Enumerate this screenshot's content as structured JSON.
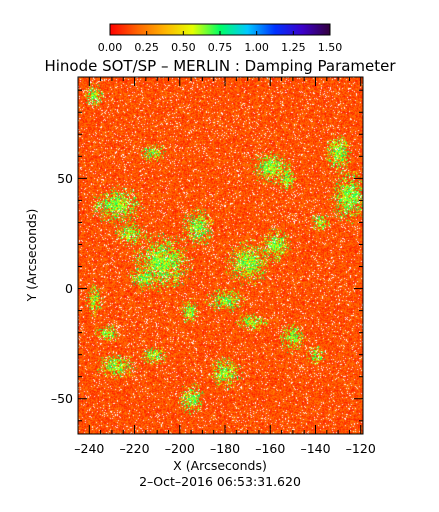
{
  "chart_data": {
    "type": "heatmap",
    "title": "Hinode SOT/SP – MERLIN : Damping Parameter",
    "xlabel": "X (Arcseconds)",
    "ylabel": "Y (Arcseconds)",
    "timestamp": "2–Oct–2016 06:53:31.620",
    "xlim": [
      -245,
      -119
    ],
    "ylim": [
      -66,
      96
    ],
    "x_ticks": [
      -240,
      -220,
      -200,
      -180,
      -160,
      -140,
      -120
    ],
    "y_ticks": [
      -50,
      0,
      50
    ],
    "x_tick_labels": [
      "–240",
      "–220",
      "–200",
      "–180",
      "–160",
      "–140",
      "–120"
    ],
    "y_tick_labels": [
      "–50",
      "0",
      "50"
    ],
    "colorbar": {
      "min": 0.0,
      "max": 1.5,
      "ticks": [
        0.0,
        0.25,
        0.5,
        0.75,
        1.0,
        1.25,
        1.5
      ],
      "tick_labels": [
        "0.00",
        "0.25",
        "0.50",
        "0.75",
        "1.00",
        "1.25",
        "1.50"
      ],
      "colors": [
        "#ff0000",
        "#ff6400",
        "#ffb400",
        "#e6ff00",
        "#00ff64",
        "#00c8ff",
        "#0032ff",
        "#3c00c8",
        "#32003c"
      ]
    },
    "field": {
      "background_value_range": [
        0.05,
        0.25
      ],
      "noise_fraction_white": 0.06,
      "high_damping_patches": [
        {
          "x": -238,
          "y": 88,
          "rx": 3,
          "ry": 4,
          "value": 0.7
        },
        {
          "x": -228,
          "y": 38,
          "rx": 8,
          "ry": 6,
          "value": 0.7
        },
        {
          "x": -222,
          "y": 25,
          "rx": 5,
          "ry": 4,
          "value": 0.65
        },
        {
          "x": -212,
          "y": 62,
          "rx": 4,
          "ry": 3,
          "value": 0.65
        },
        {
          "x": -208,
          "y": 12,
          "rx": 9,
          "ry": 9,
          "value": 0.75
        },
        {
          "x": -216,
          "y": 5,
          "rx": 5,
          "ry": 4,
          "value": 0.7
        },
        {
          "x": -192,
          "y": 28,
          "rx": 5,
          "ry": 6,
          "value": 0.7
        },
        {
          "x": -196,
          "y": -10,
          "rx": 3,
          "ry": 4,
          "value": 0.65
        },
        {
          "x": -160,
          "y": 55,
          "rx": 6,
          "ry": 5,
          "value": 0.75
        },
        {
          "x": -153,
          "y": 50,
          "rx": 3,
          "ry": 4,
          "value": 0.7
        },
        {
          "x": -170,
          "y": 12,
          "rx": 7,
          "ry": 7,
          "value": 0.75
        },
        {
          "x": -158,
          "y": 20,
          "rx": 5,
          "ry": 5,
          "value": 0.7
        },
        {
          "x": -180,
          "y": -5,
          "rx": 6,
          "ry": 4,
          "value": 0.65
        },
        {
          "x": -168,
          "y": -15,
          "rx": 5,
          "ry": 3,
          "value": 0.65
        },
        {
          "x": -150,
          "y": -22,
          "rx": 4,
          "ry": 5,
          "value": 0.65
        },
        {
          "x": -130,
          "y": 62,
          "rx": 4,
          "ry": 6,
          "value": 0.75
        },
        {
          "x": -125,
          "y": 42,
          "rx": 6,
          "ry": 8,
          "value": 0.75
        },
        {
          "x": -138,
          "y": 30,
          "rx": 3,
          "ry": 3,
          "value": 0.65
        },
        {
          "x": -228,
          "y": -35,
          "rx": 6,
          "ry": 4,
          "value": 0.7
        },
        {
          "x": -232,
          "y": -20,
          "rx": 4,
          "ry": 3,
          "value": 0.65
        },
        {
          "x": -212,
          "y": -30,
          "rx": 4,
          "ry": 3,
          "value": 0.65
        },
        {
          "x": -180,
          "y": -38,
          "rx": 5,
          "ry": 5,
          "value": 0.7
        },
        {
          "x": -195,
          "y": -50,
          "rx": 4,
          "ry": 5,
          "value": 0.7
        },
        {
          "x": -140,
          "y": -30,
          "rx": 3,
          "ry": 3,
          "value": 0.6
        },
        {
          "x": -238,
          "y": -5,
          "rx": 3,
          "ry": 5,
          "value": 0.6
        }
      ]
    }
  }
}
